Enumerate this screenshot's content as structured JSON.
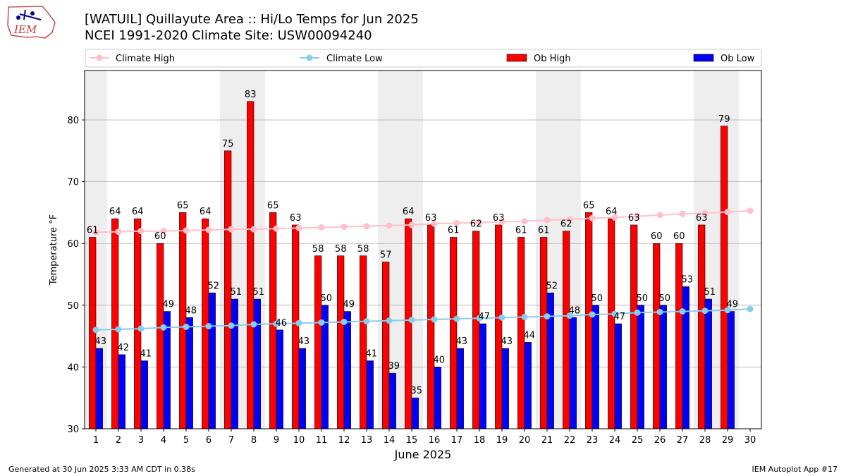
{
  "logo": {
    "text": "IEM"
  },
  "title_line1": "[WATUIL] Quillayute Area :: Hi/Lo Temps for Jun 2025",
  "title_line2": "NCEI 1991-2020 Climate Site: USW00094240",
  "footer": {
    "left": "Generated at 30 Jun 2025 3:33 AM CDT in 0.38s",
    "right": "IEM Autoplot App #17"
  },
  "colors": {
    "climate_high": "#ffc0cb",
    "climate_low": "#87ceeb",
    "ob_high": "#ff0000",
    "ob_low": "#0000ff",
    "weekend_shade": "#eeeeee",
    "grid": "#b0b0b0"
  },
  "chart_data": {
    "type": "bar",
    "xlabel": "June 2025",
    "ylabel": "Temperature °F",
    "xlim": [
      0.5,
      30.5
    ],
    "ylim": [
      30,
      88
    ],
    "yticks": [
      30,
      40,
      50,
      60,
      70,
      80
    ],
    "ygrid": true,
    "legend_position": "top",
    "categories": [
      1,
      2,
      3,
      4,
      5,
      6,
      7,
      8,
      9,
      10,
      11,
      12,
      13,
      14,
      15,
      16,
      17,
      18,
      19,
      20,
      21,
      22,
      23,
      24,
      25,
      26,
      27,
      28,
      29,
      30
    ],
    "shaded_days": [
      1,
      7,
      8,
      14,
      15,
      21,
      22,
      28,
      29
    ],
    "series": [
      {
        "name": "Climate High",
        "kind": "line",
        "values": [
          61.8,
          61.9,
          62.0,
          62.0,
          62.1,
          62.2,
          62.3,
          62.3,
          62.4,
          62.5,
          62.6,
          62.7,
          62.8,
          62.9,
          63.0,
          63.2,
          63.3,
          63.4,
          63.5,
          63.6,
          63.8,
          63.9,
          64.1,
          64.2,
          64.4,
          64.6,
          64.8,
          64.9,
          65.1,
          65.3
        ]
      },
      {
        "name": "Climate Low",
        "kind": "line",
        "values": [
          46.0,
          46.1,
          46.2,
          46.4,
          46.5,
          46.6,
          46.7,
          46.9,
          47.0,
          47.1,
          47.2,
          47.3,
          47.4,
          47.5,
          47.6,
          47.7,
          47.8,
          47.9,
          48.0,
          48.1,
          48.2,
          48.3,
          48.5,
          48.6,
          48.8,
          48.9,
          49.0,
          49.1,
          49.2,
          49.4
        ]
      },
      {
        "name": "Ob High",
        "kind": "bar",
        "values": [
          61,
          64,
          64,
          60,
          65,
          64,
          75,
          83,
          65,
          63,
          58,
          58,
          58,
          57,
          64,
          63,
          61,
          62,
          63,
          61,
          61,
          62,
          65,
          64,
          63,
          60,
          60,
          63,
          79,
          null
        ]
      },
      {
        "name": "Ob Low",
        "kind": "bar",
        "values": [
          43,
          42,
          41,
          49,
          48,
          52,
          51,
          51,
          46,
          43,
          50,
          49,
          41,
          39,
          35,
          40,
          43,
          47,
          43,
          44,
          52,
          48,
          50,
          47,
          50,
          50,
          53,
          51,
          49,
          null
        ]
      }
    ]
  }
}
